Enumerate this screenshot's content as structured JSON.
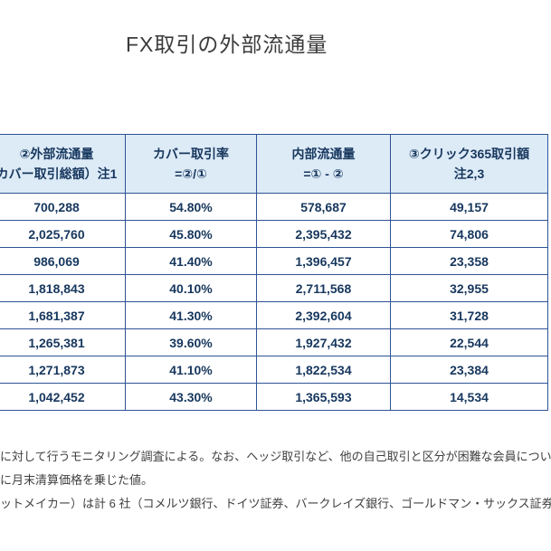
{
  "title": "FX取引の外部流通量",
  "table": {
    "headers": [
      {
        "line1": "②外部流通量",
        "line2": "カバー取引総額）注1"
      },
      {
        "line1": "カバー取引率",
        "line2": "=②/①"
      },
      {
        "line1": "内部流通量",
        "line2": "=① - ②"
      },
      {
        "line1": "③クリック365取引額",
        "line2": "注2,3"
      }
    ],
    "rows": [
      [
        "700,288",
        "54.80%",
        "578,687",
        "49,157"
      ],
      [
        "2,025,760",
        "45.80%",
        "2,395,432",
        "74,806"
      ],
      [
        "986,069",
        "41.40%",
        "1,396,457",
        "23,358"
      ],
      [
        "1,818,843",
        "40.10%",
        "2,711,568",
        "32,955"
      ],
      [
        "1,681,387",
        "41.30%",
        "2,392,604",
        "31,728"
      ],
      [
        "1,265,381",
        "39.60%",
        "1,927,432",
        "22,544"
      ],
      [
        "1,271,873",
        "41.10%",
        "1,822,534",
        "23,384"
      ],
      [
        "1,042,452",
        "43.30%",
        "1,365,593",
        "14,534"
      ]
    ]
  },
  "notes": [
    "に対して行うモニタリング調査による。なお、ヘッジ取引など、他の自己取引と区分が困難な会員につい",
    "に月末清算価格を乗じた値。",
    "ットメイカー）は計 6 社（コメルツ銀行、ドイツ証券、バークレイズ銀行、ゴールドマン・サックス証券"
  ],
  "colors": {
    "header_bg": "#DDEBF7",
    "border": "#2E5395",
    "text": "#17375E"
  }
}
